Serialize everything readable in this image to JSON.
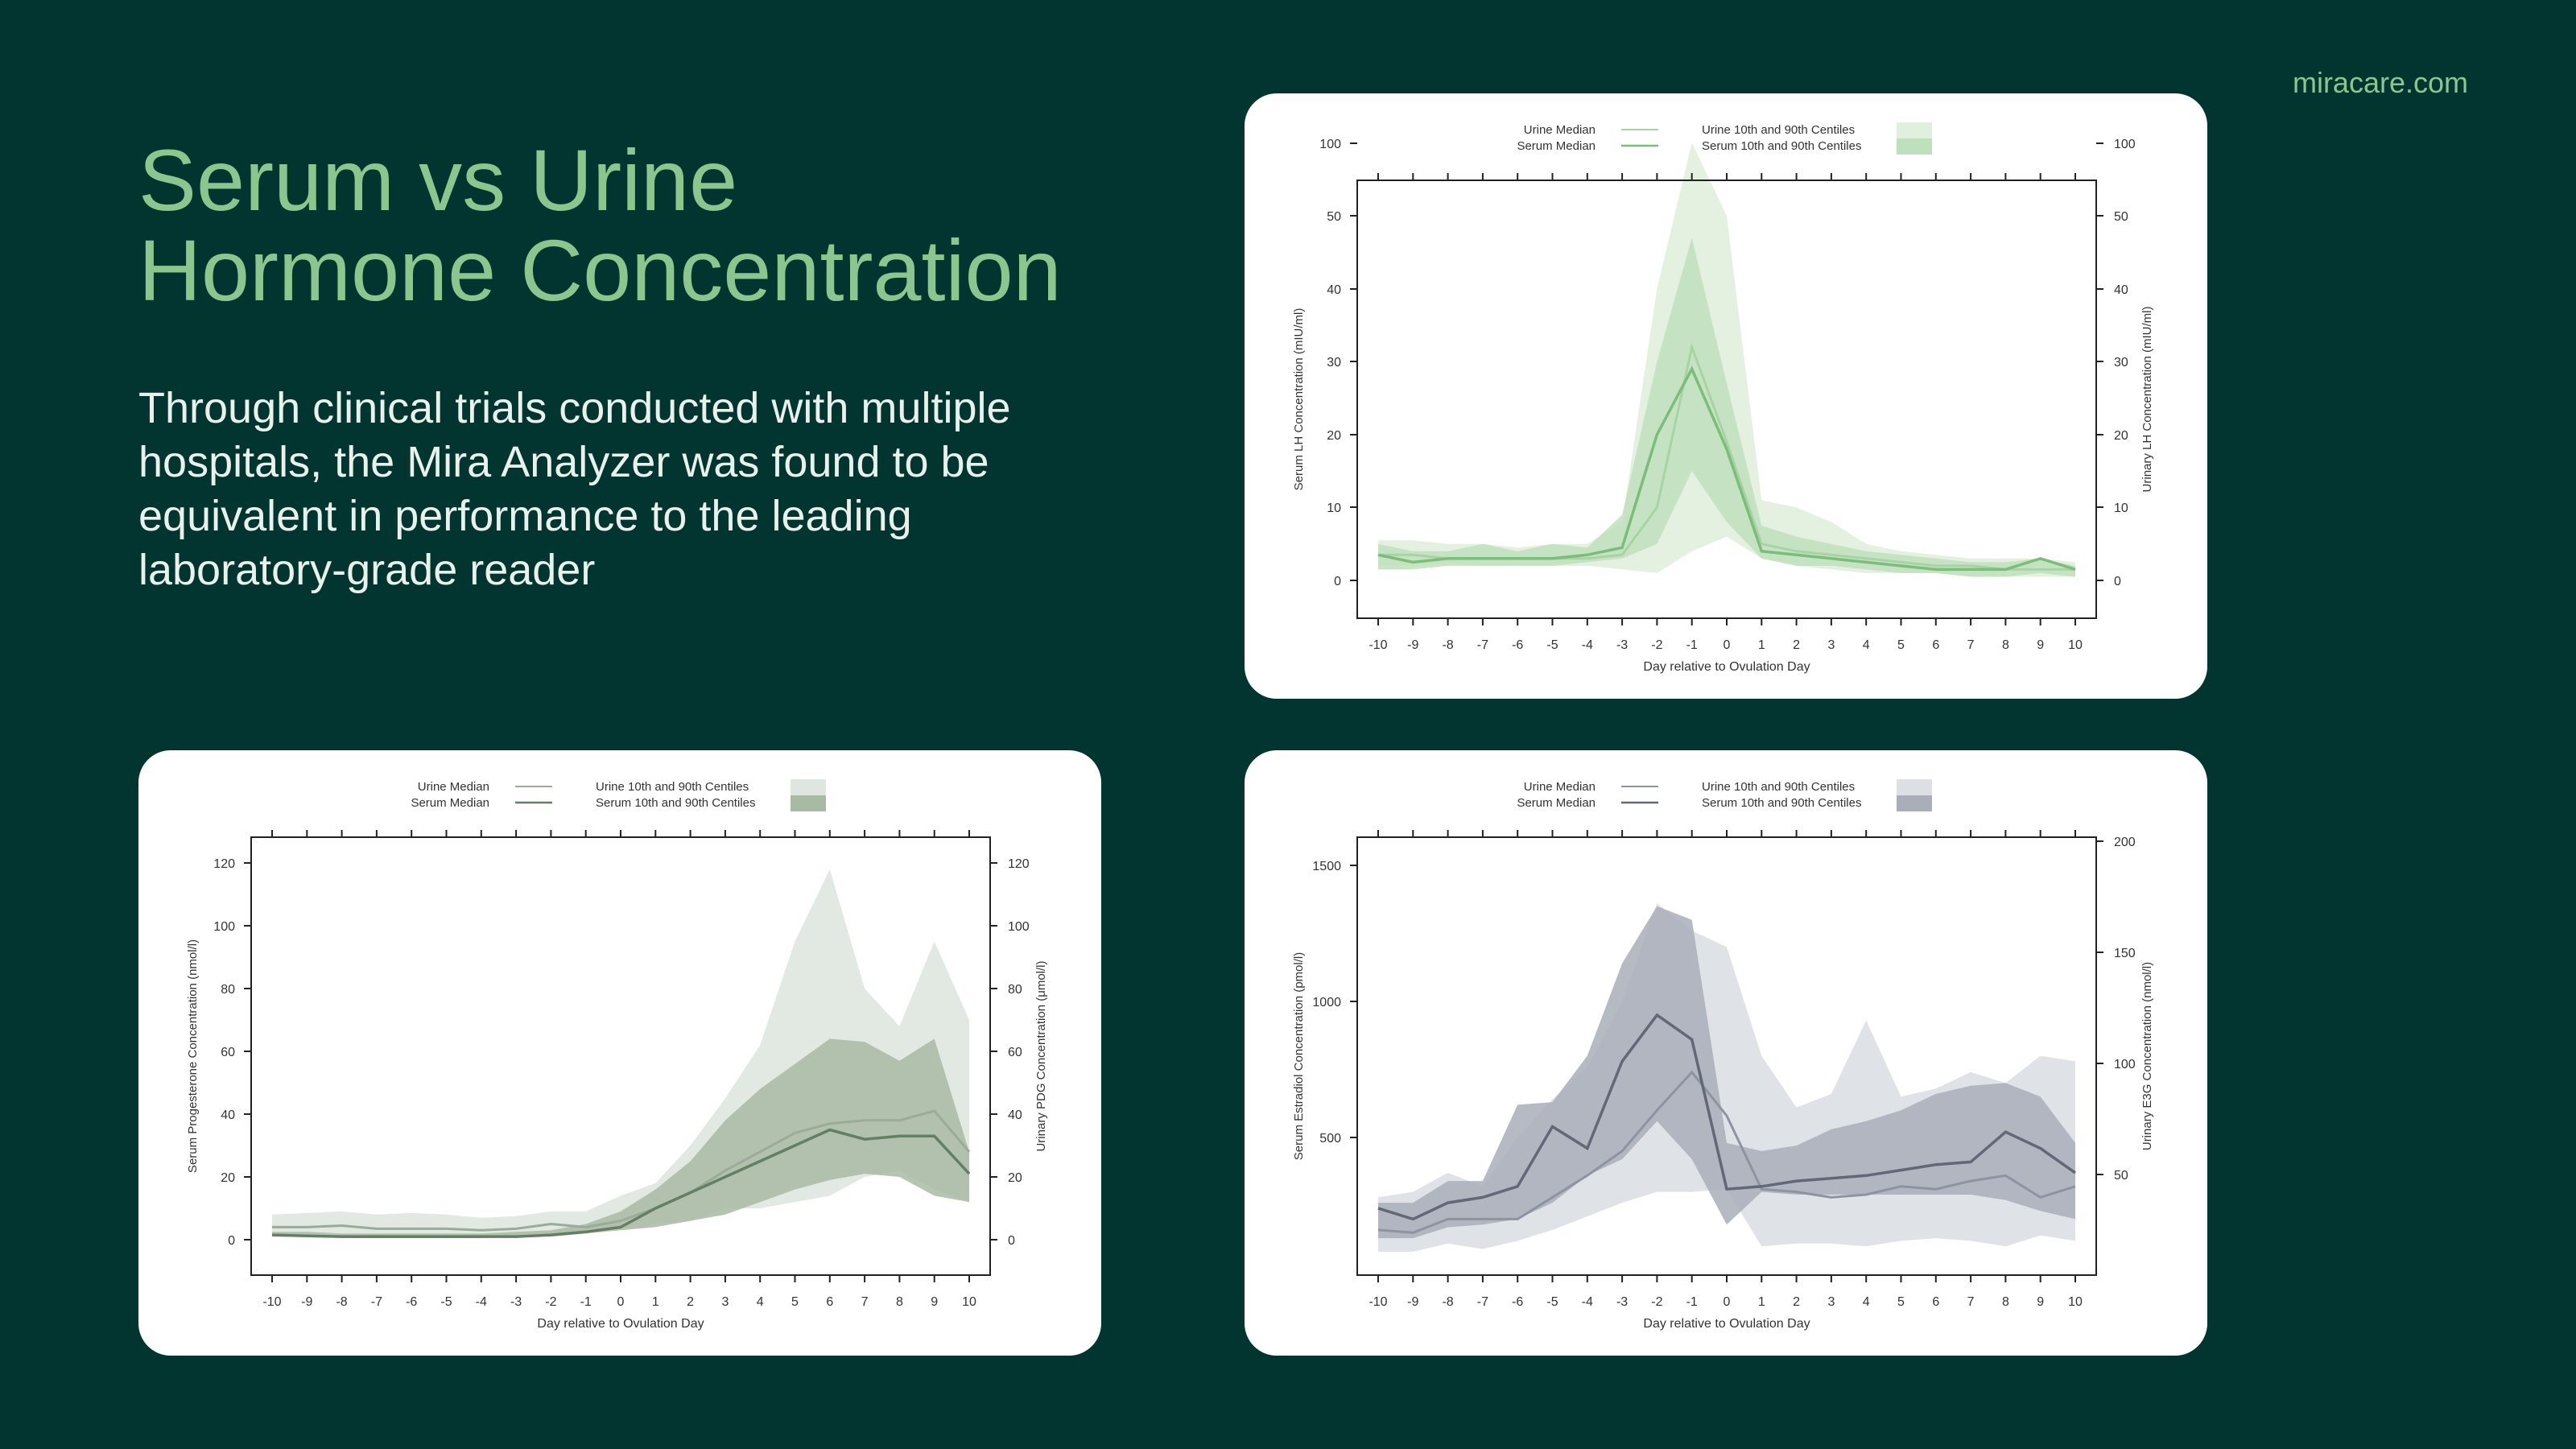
{
  "brand": "miracare.com",
  "title_line1": "Serum vs Urine",
  "title_line2": "Hormone Concentration",
  "subtitle": "Through clinical trials conducted with multiple hospitals, the Mira Analyzer was found to be equivalent in performance to the leading laboratory-grade reader",
  "colors": {
    "background": "#023430",
    "accent": "#8dc58f",
    "text": "#e9f1ec"
  },
  "chart_data": [
    {
      "id": "lh",
      "type": "area",
      "xlabel": "Day relative to Ovulation Day",
      "ylabel_left": "Serum LH Concentration (mIU/ml)",
      "ylabel_right": "Urinary LH Concentration (mIU/ml)",
      "x": [
        -10,
        -9,
        -8,
        -7,
        -6,
        -5,
        -4,
        -3,
        -2,
        -1,
        0,
        1,
        2,
        3,
        4,
        5,
        6,
        7,
        8,
        9,
        10
      ],
      "left_ticks": [
        "0",
        "10",
        "20",
        "30",
        "40",
        "50",
        "100"
      ],
      "right_ticks": [
        "0",
        "10",
        "20",
        "30",
        "40",
        "50",
        "100"
      ],
      "legend": {
        "urine_median": "Urine Median",
        "serum_median": "Serum Median",
        "urine_band": "Urine 10th and 90th Centiles",
        "serum_band": "Serum 10th and 90th Centiles"
      },
      "colors": {
        "urine_band": "#e1f0de",
        "serum_band": "#bfe0bc",
        "urine_line": "#a8d3a4",
        "serum_line": "#7cbd7b"
      },
      "series": [
        {
          "name": "Urine 10th and 90th Centiles",
          "role": "urine_band",
          "low": [
            2,
            2,
            2.5,
            2,
            2,
            2,
            2,
            1.5,
            1,
            4,
            6,
            3,
            2,
            1.5,
            1,
            1,
            1,
            0.5,
            0.5,
            0.5,
            0.5
          ],
          "high": [
            5.5,
            5.5,
            5,
            5,
            4.5,
            5,
            5,
            8,
            40,
            100,
            50,
            11,
            10,
            8,
            5,
            4,
            3.5,
            3,
            3,
            3,
            2.5
          ]
        },
        {
          "name": "Serum 10th and 90th Centiles",
          "role": "serum_band",
          "low": [
            1.5,
            1.5,
            2,
            2,
            2,
            2,
            2.5,
            3,
            5,
            15,
            8,
            3,
            2,
            2,
            1.5,
            1,
            1,
            0.5,
            0.5,
            1,
            0.5
          ],
          "high": [
            5,
            4,
            4,
            5,
            4,
            5,
            4.5,
            9,
            30,
            47,
            27,
            7.5,
            6,
            5,
            4,
            3.5,
            3,
            2.5,
            2.5,
            3,
            2
          ]
        },
        {
          "name": "Urine Median",
          "role": "urine_line",
          "values": [
            3.5,
            3.5,
            3,
            3,
            3,
            3,
            3,
            3.5,
            10,
            32,
            19,
            5,
            4,
            3.5,
            3,
            2.5,
            2,
            2,
            1.5,
            1.5,
            1.5
          ]
        },
        {
          "name": "Serum Median",
          "role": "serum_line",
          "values": [
            3.5,
            2.5,
            3,
            3,
            3,
            3,
            3.5,
            4.5,
            20,
            29,
            18,
            4,
            3.5,
            3,
            2.5,
            2,
            1.5,
            1.5,
            1.5,
            3,
            1.5
          ]
        }
      ]
    },
    {
      "id": "pdg",
      "type": "area",
      "xlabel": "Day relative to Ovulation Day",
      "ylabel_left": "Serum Progesterone Concentration (nmol/l)",
      "ylabel_right": "Urinary PDG Concentration (μmol/l)",
      "x": [
        -10,
        -9,
        -8,
        -7,
        -6,
        -5,
        -4,
        -3,
        -2,
        -1,
        0,
        1,
        2,
        3,
        4,
        5,
        6,
        7,
        8,
        9,
        10
      ],
      "left_ticks": [
        "0",
        "20",
        "40",
        "60",
        "80",
        "100",
        "120"
      ],
      "right_ticks": [
        "0",
        "20",
        "40",
        "60",
        "80",
        "100",
        "120"
      ],
      "ylim": [
        0,
        120
      ],
      "legend": {
        "urine_median": "Urine Median",
        "serum_median": "Serum Median",
        "urine_band": "Urine 10th and 90th Centiles",
        "serum_band": "Serum 10th and 90th Centiles"
      },
      "colors": {
        "urine_band": "#dfe6df",
        "serum_band": "#a9baa4",
        "urine_line": "#9aab98",
        "serum_line": "#657f62"
      },
      "series": [
        {
          "name": "Urine 10th and 90th Centiles",
          "role": "urine_band",
          "low": [
            2,
            2,
            2,
            1.5,
            1.5,
            1.5,
            1.5,
            1.5,
            2,
            3,
            3,
            5,
            6,
            10,
            10,
            12,
            14,
            20,
            22,
            16,
            12
          ],
          "high": [
            8,
            8.5,
            9,
            8,
            8.5,
            8,
            7,
            7.5,
            9,
            9,
            14,
            18,
            30,
            45,
            62,
            95,
            118,
            80,
            68,
            95,
            70
          ]
        },
        {
          "name": "Serum 10th and 90th Centiles",
          "role": "serum_band",
          "low": [
            1,
            1,
            0.5,
            0.5,
            0.5,
            0.5,
            0.5,
            1,
            1,
            2,
            3,
            4,
            6,
            8,
            12,
            16,
            19,
            21,
            20,
            14,
            12
          ],
          "high": [
            2.5,
            2.5,
            2,
            2,
            2,
            2,
            2,
            2.5,
            3,
            5,
            9,
            16,
            25,
            38,
            48,
            56,
            64,
            63,
            57,
            64,
            28
          ]
        },
        {
          "name": "Urine Median",
          "role": "urine_line",
          "values": [
            4,
            4,
            4.5,
            3.5,
            3.5,
            3.5,
            3,
            3.5,
            5,
            4,
            6,
            10,
            15,
            22,
            28,
            34,
            37,
            38,
            38,
            41,
            28
          ]
        },
        {
          "name": "Serum Median",
          "role": "serum_line",
          "values": [
            1.5,
            1.2,
            1,
            1,
            1,
            1,
            1,
            1,
            1.5,
            2.5,
            4,
            10,
            15,
            20,
            25,
            30,
            35,
            32,
            33,
            33,
            21
          ]
        }
      ]
    },
    {
      "id": "e3g",
      "type": "area",
      "xlabel": "Day relative to Ovulation Day",
      "ylabel_left": "Serum Estradiol Concentration (pmol/l)",
      "ylabel_right": "Urinary E3G Concentration (nmol/l)",
      "x": [
        -10,
        -9,
        -8,
        -7,
        -6,
        -5,
        -4,
        -3,
        -2,
        -1,
        0,
        1,
        2,
        3,
        4,
        5,
        6,
        7,
        8,
        9,
        10
      ],
      "left_ticks": [
        "500",
        "1000",
        "1500"
      ],
      "right_ticks": [
        "50",
        "100",
        "150",
        "200"
      ],
      "ylim_left": [
        0,
        1500
      ],
      "ylim_right": [
        0,
        200
      ],
      "legend": {
        "urine_median": "Urine Median",
        "serum_median": "Serum Median",
        "urine_band": "Urine 10th and 90th Centiles",
        "serum_band": "Serum 10th and 90th Centiles"
      },
      "colors": {
        "urine_band": "#dcdfe3",
        "serum_band": "#a9aeb8",
        "urine_line": "#8e93a2",
        "serum_line": "#626878"
      },
      "series": [
        {
          "name": "Urine 10th and 90th Centiles",
          "role": "urine_band",
          "low": [
            80,
            80,
            110,
            90,
            120,
            160,
            210,
            260,
            300,
            300,
            310,
            100,
            110,
            110,
            100,
            120,
            130,
            120,
            100,
            140,
            120
          ],
          "high": [
            280,
            300,
            370,
            320,
            500,
            640,
            760,
            1000,
            1360,
            1260,
            1200,
            800,
            610,
            660,
            930,
            650,
            680,
            740,
            700,
            800,
            780
          ]
        },
        {
          "name": "Serum 10th and 90th Centiles",
          "role": "serum_band",
          "low": [
            130,
            130,
            170,
            180,
            200,
            260,
            360,
            420,
            560,
            420,
            180,
            300,
            290,
            290,
            290,
            290,
            290,
            290,
            270,
            230,
            200
          ],
          "high": [
            260,
            260,
            340,
            340,
            620,
            630,
            800,
            1140,
            1350,
            1300,
            480,
            450,
            470,
            530,
            560,
            600,
            660,
            690,
            700,
            650,
            480
          ]
        },
        {
          "name": "Urine Median",
          "role": "urine_line",
          "values": [
            160,
            150,
            200,
            200,
            200,
            280,
            360,
            450,
            600,
            740,
            580,
            310,
            300,
            280,
            290,
            320,
            310,
            340,
            360,
            280,
            320
          ]
        },
        {
          "name": "Serum Median",
          "role": "serum_line",
          "values": [
            240,
            200,
            260,
            280,
            320,
            540,
            460,
            780,
            950,
            860,
            310,
            320,
            340,
            350,
            360,
            380,
            400,
            410,
            520,
            460,
            370
          ]
        }
      ]
    }
  ]
}
